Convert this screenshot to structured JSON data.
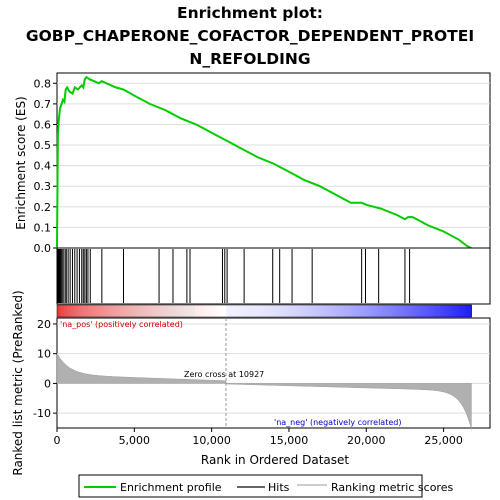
{
  "chart_data": {
    "type": "line",
    "title_lines": [
      "Enrichment plot:",
      "GOBP_CHAPERONE_COFACTOR_DEPENDENT_PROTEI",
      "N_REFOLDING"
    ],
    "es_panel": {
      "ylabel": "Enrichment score (ES)",
      "ylim": [
        0,
        0.85
      ],
      "yticks": [
        "0.0",
        "0.1",
        "0.2",
        "0.3",
        "0.4",
        "0.5",
        "0.6",
        "0.7",
        "0.8"
      ],
      "curve_color": "#00cc00",
      "points": [
        [
          0,
          0
        ],
        [
          60,
          0.55
        ],
        [
          120,
          0.63
        ],
        [
          200,
          0.68
        ],
        [
          300,
          0.7
        ],
        [
          380,
          0.72
        ],
        [
          480,
          0.71
        ],
        [
          560,
          0.77
        ],
        [
          650,
          0.78
        ],
        [
          800,
          0.76
        ],
        [
          1000,
          0.75
        ],
        [
          1150,
          0.78
        ],
        [
          1350,
          0.77
        ],
        [
          1600,
          0.79
        ],
        [
          1700,
          0.78
        ],
        [
          1800,
          0.82
        ],
        [
          1900,
          0.83
        ],
        [
          2100,
          0.82
        ],
        [
          2400,
          0.81
        ],
        [
          2700,
          0.8
        ],
        [
          2900,
          0.81
        ],
        [
          3200,
          0.8
        ],
        [
          3800,
          0.78
        ],
        [
          4300,
          0.77
        ],
        [
          5000,
          0.74
        ],
        [
          6000,
          0.7
        ],
        [
          7000,
          0.67
        ],
        [
          8000,
          0.63
        ],
        [
          9000,
          0.6
        ],
        [
          10000,
          0.56
        ],
        [
          11000,
          0.52
        ],
        [
          12000,
          0.48
        ],
        [
          13000,
          0.44
        ],
        [
          14000,
          0.41
        ],
        [
          15000,
          0.37
        ],
        [
          16000,
          0.33
        ],
        [
          17000,
          0.3
        ],
        [
          18000,
          0.26
        ],
        [
          19000,
          0.22
        ],
        [
          19700,
          0.22
        ],
        [
          20000,
          0.21
        ],
        [
          21000,
          0.19
        ],
        [
          22000,
          0.16
        ],
        [
          22500,
          0.14
        ],
        [
          22700,
          0.15
        ],
        [
          23000,
          0.15
        ],
        [
          24000,
          0.11
        ],
        [
          25000,
          0.08
        ],
        [
          26000,
          0.04
        ],
        [
          26500,
          0.01
        ],
        [
          26800,
          0
        ]
      ]
    },
    "hits": [
      40,
      70,
      110,
      150,
      190,
      250,
      320,
      400,
      520,
      600,
      720,
      850,
      1000,
      1150,
      1300,
      1450,
      1600,
      1700,
      1800,
      1900,
      2000,
      2150,
      2900,
      4300,
      6600,
      7500,
      8400,
      8600,
      10700,
      10850,
      11000,
      12100,
      13950,
      14400,
      15200,
      16500,
      19700,
      19950,
      20800,
      22500,
      22800
    ],
    "rank_bar": {
      "positive_color": "#ff0000",
      "negative_color": "#0000ff"
    },
    "metric_panel": {
      "ylabel": "Ranked list metric (PreRanked)",
      "ylim": [
        -15,
        22
      ],
      "yticks": [
        "-10",
        "0",
        "10",
        "20"
      ],
      "xlabel": "Rank in Ordered Dataset",
      "xlim": [
        0,
        28000
      ],
      "xticks": [
        "0",
        "5,000",
        "10,000",
        "15,000",
        "20,000",
        "25,000"
      ],
      "zero_cross": 10927,
      "zero_cross_label": "Zero cross at 10927",
      "pos_label": "'na_pos' (positively correlated)",
      "neg_label": "'na_neg' (negatively correlated)",
      "n_ranks": 26800
    },
    "legend": [
      "Enrichment profile",
      "Hits",
      "Ranking metric scores"
    ]
  }
}
